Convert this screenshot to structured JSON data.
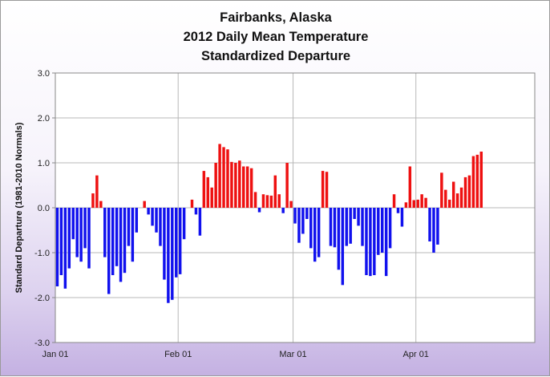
{
  "chart_data": {
    "type": "bar",
    "title": [
      "Fairbanks, Alaska",
      "2012 Daily Mean Temperature",
      "Standardized Departure"
    ],
    "ylabel": "Standard Departure (1981-2010 Normals)",
    "xlabel": "",
    "ylim": [
      -3.0,
      3.0
    ],
    "yticks": [
      "3.0",
      "2.0",
      "1.0",
      "0.0",
      "-1.0",
      "-2.0",
      "-3.0"
    ],
    "xticks": [
      {
        "label": "Jan 01",
        "day": 1
      },
      {
        "label": "Feb 01",
        "day": 32
      },
      {
        "label": "Mar 01",
        "day": 61
      },
      {
        "label": "Apr 01",
        "day": 92
      }
    ],
    "xlim_days": [
      1,
      121
    ],
    "grid": true,
    "positive_color": "#ee1111",
    "negative_color": "#1111ee",
    "series": [
      {
        "day_start": 1,
        "values": [
          -1.75,
          -1.5,
          -1.8,
          -1.35,
          -0.7,
          -1.1,
          -1.2,
          -0.9,
          -1.35,
          0.32,
          0.72,
          0.15,
          -1.1,
          -1.92,
          -1.5,
          -1.3,
          -1.65,
          -1.45,
          -0.85,
          -1.2,
          -0.55,
          0.0,
          0.15,
          -0.15,
          -0.4,
          -0.55,
          -0.85,
          -1.6,
          -2.12,
          -2.05,
          -1.55,
          -1.48,
          -0.7,
          0.0,
          0.18,
          -0.15,
          -0.62,
          0.82,
          0.68,
          0.45,
          1.0,
          1.42,
          1.35,
          1.3,
          1.02,
          1.0,
          1.05,
          0.92,
          0.92,
          0.88,
          0.35,
          -0.1,
          0.3,
          0.28,
          0.27,
          0.72,
          0.3,
          -0.12,
          1.0,
          0.15,
          -0.35,
          -0.78,
          -0.58,
          -0.25,
          -0.9,
          -1.2,
          -1.1,
          0.82,
          0.8,
          -0.85,
          -0.88,
          -1.38,
          -1.72,
          -0.85,
          -0.8,
          -0.25,
          -0.4,
          -0.85,
          -1.5,
          -1.52,
          -1.5,
          -1.05,
          -1.0,
          -1.52,
          -0.9,
          0.3,
          -0.12,
          -0.42,
          0.12,
          0.92,
          0.17,
          0.18,
          0.3,
          0.22,
          -0.75,
          -1.0,
          -0.82,
          0.78,
          0.4,
          0.18,
          0.58,
          0.32,
          0.45,
          0.68,
          0.72,
          1.15,
          1.18,
          1.25
        ]
      }
    ]
  }
}
